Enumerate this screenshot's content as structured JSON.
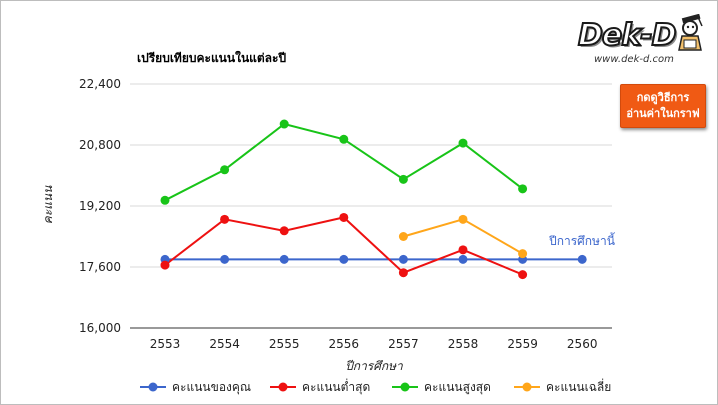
{
  "colors": {
    "your_score": "#3c66cc",
    "min_score": "#ee1111",
    "max_score": "#18c418",
    "avg_score": "#ffa61a",
    "gridline": "#d9d9d9",
    "button_bg": "#f05a14"
  },
  "logo": {
    "word": "Dek-D",
    "url": "www.dek-d.com",
    "mascot_icon": "student-mascot-icon"
  },
  "button": {
    "line1": "กดดูวิธีการ",
    "line2": "อ่านค่าในกราฟ"
  },
  "chart_data": {
    "type": "line",
    "title": "เปรียบเทียบคะแนนในแต่ละปี",
    "xlabel": "ปีการศึกษา",
    "ylabel": "คะแนน",
    "x": [
      "2553",
      "2554",
      "2555",
      "2556",
      "2557",
      "2558",
      "2559",
      "2560"
    ],
    "ylim": [
      16000,
      22400
    ],
    "yticks": [
      16000,
      17600,
      19200,
      20800,
      22400
    ],
    "ytick_labels": [
      "16,000",
      "17,600",
      "19,200",
      "20,800",
      "22,400"
    ],
    "grid": true,
    "legend_position": "bottom",
    "series": [
      {
        "key": "your_score",
        "name": "คะแนนของคุณ",
        "values": [
          17800,
          17800,
          17800,
          17800,
          17800,
          17800,
          17800,
          17800
        ]
      },
      {
        "key": "min_score",
        "name": "คะแนนต่ำสุด",
        "values": [
          17650,
          18850,
          18550,
          18900,
          17450,
          18050,
          17400,
          null
        ]
      },
      {
        "key": "max_score",
        "name": "คะแนนสูงสุด",
        "values": [
          19350,
          20150,
          21350,
          20950,
          19900,
          20850,
          19650,
          null
        ]
      },
      {
        "key": "avg_score",
        "name": "คะแนนเฉลี่ย",
        "values": [
          null,
          null,
          null,
          null,
          18400,
          18850,
          17950,
          null
        ]
      }
    ],
    "annotation": "ปีการศึกษานี้"
  }
}
